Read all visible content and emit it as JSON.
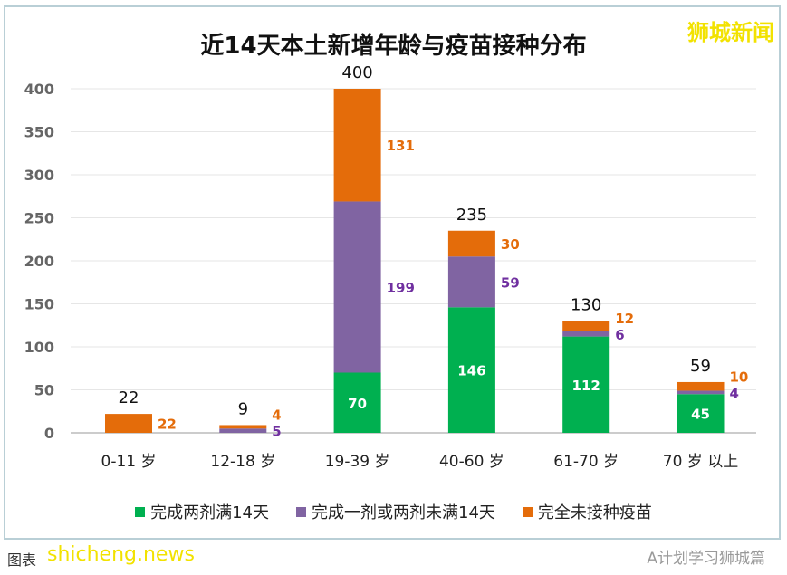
{
  "brand": "狮城新闻",
  "caption": "图表",
  "watermarks": [
    "shicheng.news",
    "A计划学习狮城篇"
  ],
  "chart_data": {
    "type": "bar",
    "stacked": true,
    "title": "近14天本土新增年龄与疫苗接种分布",
    "categories": [
      "0-11 岁",
      "12-18 岁",
      "19-39 岁",
      "40-60 岁",
      "61-70 岁",
      "70 岁 以上"
    ],
    "series": [
      {
        "name": "完成两剂满14天",
        "color": "#00b050",
        "values": [
          0,
          0,
          70,
          146,
          112,
          45
        ]
      },
      {
        "name": "完成一剂或两剂未满14天",
        "color": "#8064a2",
        "values": [
          0,
          5,
          199,
          59,
          6,
          4
        ]
      },
      {
        "name": "完全未接种疫苗",
        "color": "#e46c0a",
        "values": [
          22,
          4,
          131,
          30,
          12,
          10
        ]
      }
    ],
    "totals": [
      22,
      9,
      400,
      235,
      130,
      59
    ],
    "ylim": [
      0,
      400
    ],
    "yticks": [
      0,
      50,
      100,
      150,
      200,
      250,
      300,
      350,
      400
    ],
    "grid": true,
    "legend": "bottom"
  }
}
